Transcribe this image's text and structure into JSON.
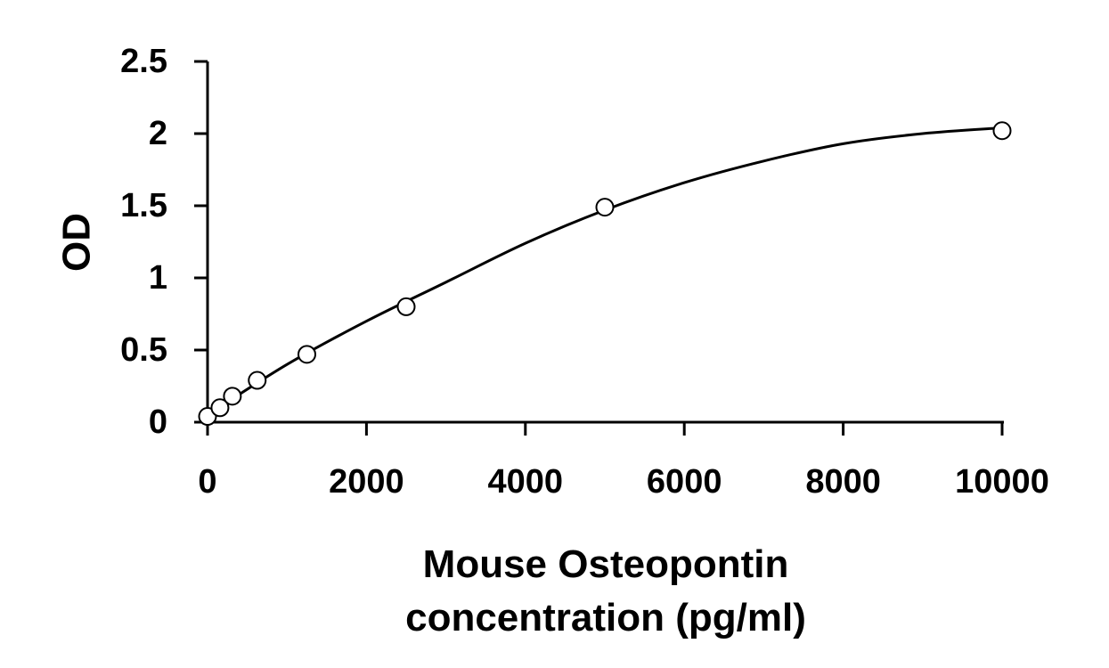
{
  "chart_data": {
    "type": "scatter",
    "title": "",
    "xlabel_lines": [
      "Mouse Osteopontin",
      "concentration (pg/ml)"
    ],
    "ylabel": "OD",
    "xlim": [
      0,
      10000
    ],
    "ylim": [
      0,
      2.5
    ],
    "xticks": [
      0,
      2000,
      4000,
      6000,
      8000,
      10000
    ],
    "xtick_labels": [
      "0",
      "2000",
      "4000",
      "6000",
      "8000",
      "10000"
    ],
    "yticks": [
      0,
      0.5,
      1,
      1.5,
      2,
      2.5
    ],
    "ytick_labels": [
      "0",
      "0.5",
      "1",
      "1.5",
      "2",
      "2.5"
    ],
    "grid": false,
    "legend": "none",
    "series": [
      {
        "marker": "open-circle",
        "x": [
          0,
          156.25,
          312.5,
          625,
          1250,
          2500,
          5000,
          10000
        ],
        "y": [
          0.04,
          0.1,
          0.18,
          0.29,
          0.47,
          0.8,
          1.49,
          2.02
        ]
      }
    ],
    "fit_curve": {
      "style": "solid",
      "x": [
        0,
        1000,
        2000,
        3000,
        4000,
        5000,
        6000,
        7000,
        8000,
        9000,
        10000
      ],
      "y": [
        0.05,
        0.4,
        0.7,
        0.97,
        1.24,
        1.47,
        1.66,
        1.81,
        1.93,
        2.0,
        2.04
      ]
    }
  }
}
